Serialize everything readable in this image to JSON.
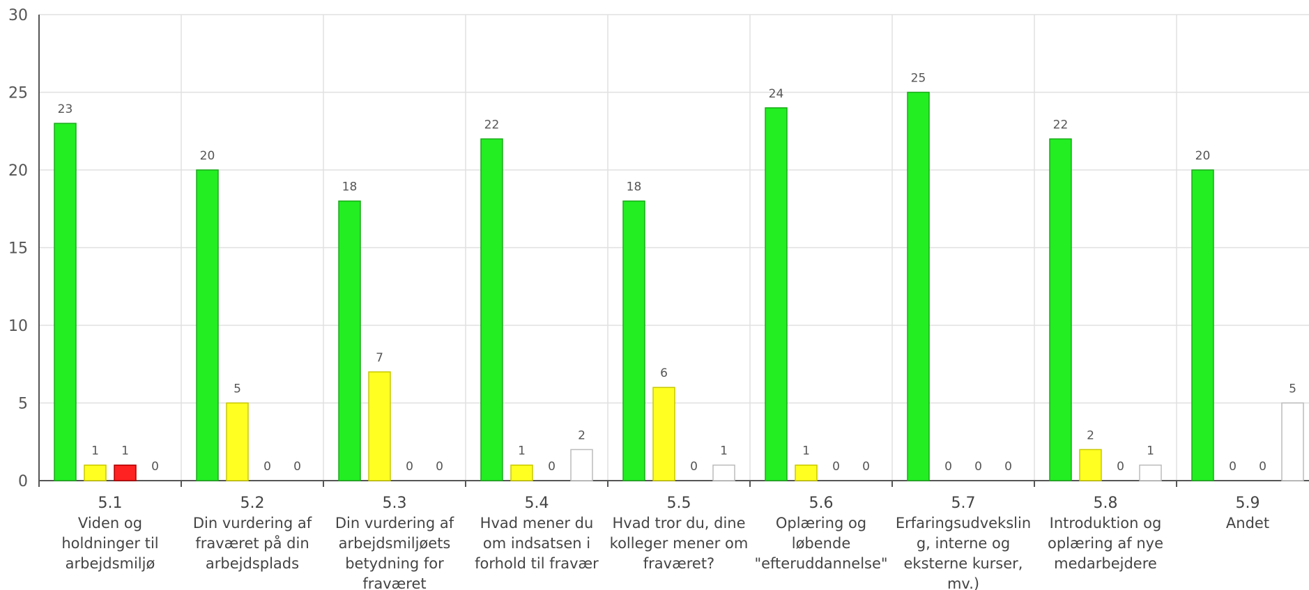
{
  "chart_data": {
    "type": "bar",
    "ylim": [
      0,
      30
    ],
    "yticks": [
      0,
      5,
      10,
      15,
      20,
      25,
      30
    ],
    "grid": true,
    "categories": [
      {
        "code": "5.1",
        "lines": [
          "Viden og",
          "holdninger til",
          "arbejdsmiljø"
        ]
      },
      {
        "code": "5.2",
        "lines": [
          "Din vurdering af",
          "fraværet på din",
          "arbejdsplads"
        ]
      },
      {
        "code": "5.3",
        "lines": [
          "Din vurdering af",
          "arbejdsmiljøets",
          "betydning for",
          "fraværet"
        ]
      },
      {
        "code": "5.4",
        "lines": [
          "Hvad mener du",
          "om indsatsen i",
          "forhold til fravær"
        ]
      },
      {
        "code": "5.5",
        "lines": [
          "Hvad tror du, dine",
          "kolleger mener om",
          "fraværet?"
        ]
      },
      {
        "code": "5.6",
        "lines": [
          "Oplæring og",
          "løbende",
          "\"efteruddannelse\""
        ]
      },
      {
        "code": "5.7",
        "lines": [
          "Erfaringsudvekslin",
          "g, interne og",
          "eksterne kurser,",
          "mv.)"
        ]
      },
      {
        "code": "5.8",
        "lines": [
          "Introduktion og",
          "oplæring af nye",
          "medarbejdere"
        ]
      },
      {
        "code": "5.9",
        "lines": [
          "Andet"
        ]
      }
    ],
    "series": [
      {
        "color": "#22ee22",
        "stroke": "#1aaa1a",
        "values": [
          23,
          20,
          18,
          22,
          18,
          24,
          25,
          22,
          20
        ]
      },
      {
        "color": "#ffff22",
        "stroke": "#c8c800",
        "values": [
          1,
          5,
          7,
          1,
          6,
          1,
          0,
          2,
          0
        ]
      },
      {
        "color": "#ff2222",
        "stroke": "#b00000",
        "values": [
          1,
          0,
          0,
          0,
          0,
          0,
          0,
          0,
          0
        ]
      },
      {
        "color": "#ffffff",
        "stroke": "#bbbbbb",
        "values": [
          0,
          0,
          0,
          2,
          1,
          0,
          0,
          1,
          5
        ]
      }
    ]
  }
}
